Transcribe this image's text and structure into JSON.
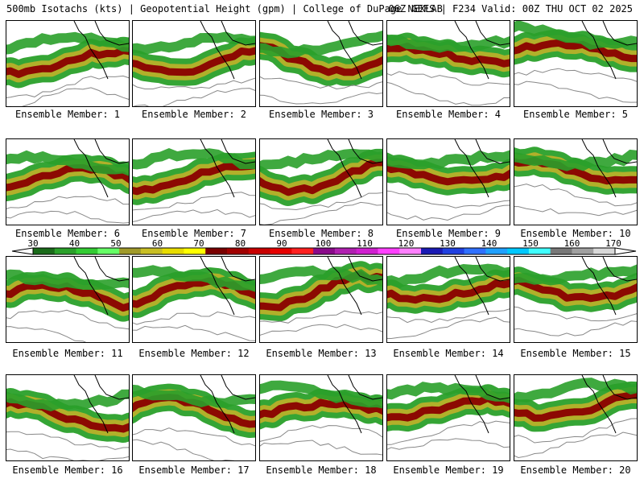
{
  "header": {
    "left_text": "500mb Isotachs (kts) | Geopotential Height (gpm) | College of DuPage NEXLAB",
    "right_text": "06Z GEFS | F234 Valid: 00Z THU OCT 02 2025"
  },
  "panels": [
    {
      "label": "Ensemble Member: 1"
    },
    {
      "label": "Ensemble Member: 2"
    },
    {
      "label": "Ensemble Member: 3"
    },
    {
      "label": "Ensemble Member: 4"
    },
    {
      "label": "Ensemble Member: 5"
    },
    {
      "label": "Ensemble Member: 6"
    },
    {
      "label": "Ensemble Member: 7"
    },
    {
      "label": "Ensemble Member: 8"
    },
    {
      "label": "Ensemble Member: 9"
    },
    {
      "label": "Ensemble Member: 10"
    },
    {
      "label": "Ensemble Member: 11"
    },
    {
      "label": "Ensemble Member: 12"
    },
    {
      "label": "Ensemble Member: 13"
    },
    {
      "label": "Ensemble Member: 14"
    },
    {
      "label": "Ensemble Member: 15"
    },
    {
      "label": "Ensemble Member: 16"
    },
    {
      "label": "Ensemble Member: 17"
    },
    {
      "label": "Ensemble Member: 18"
    },
    {
      "label": "Ensemble Member: 19"
    },
    {
      "label": "Ensemble Member: 20"
    }
  ],
  "colorbar": {
    "ticks": [
      "30",
      "40",
      "50",
      "60",
      "70",
      "80",
      "90",
      "100",
      "110",
      "120",
      "130",
      "140",
      "150",
      "160",
      "170"
    ],
    "colors": [
      "#1a6b1a",
      "#2aa02a",
      "#33cc33",
      "#66ff66",
      "#a09a2a",
      "#c8be24",
      "#e8dc00",
      "#ffff00",
      "#7a0000",
      "#a00000",
      "#c80000",
      "#e60000",
      "#ff2020",
      "#8a0a8a",
      "#b020b0",
      "#d020d0",
      "#ff40ff",
      "#ff80ff",
      "#1a1ab4",
      "#2040e0",
      "#3070ff",
      "#20a0ff",
      "#00c8ff",
      "#40ffff",
      "#787878",
      "#a0a0a0",
      "#d8d8d8"
    ]
  },
  "map_colors": {
    "jet_weak": "#2aa02a",
    "jet_mid": "#b8b02a",
    "jet_core": "#8a0000",
    "height_contour": "#888888",
    "coastline": "#000000"
  }
}
